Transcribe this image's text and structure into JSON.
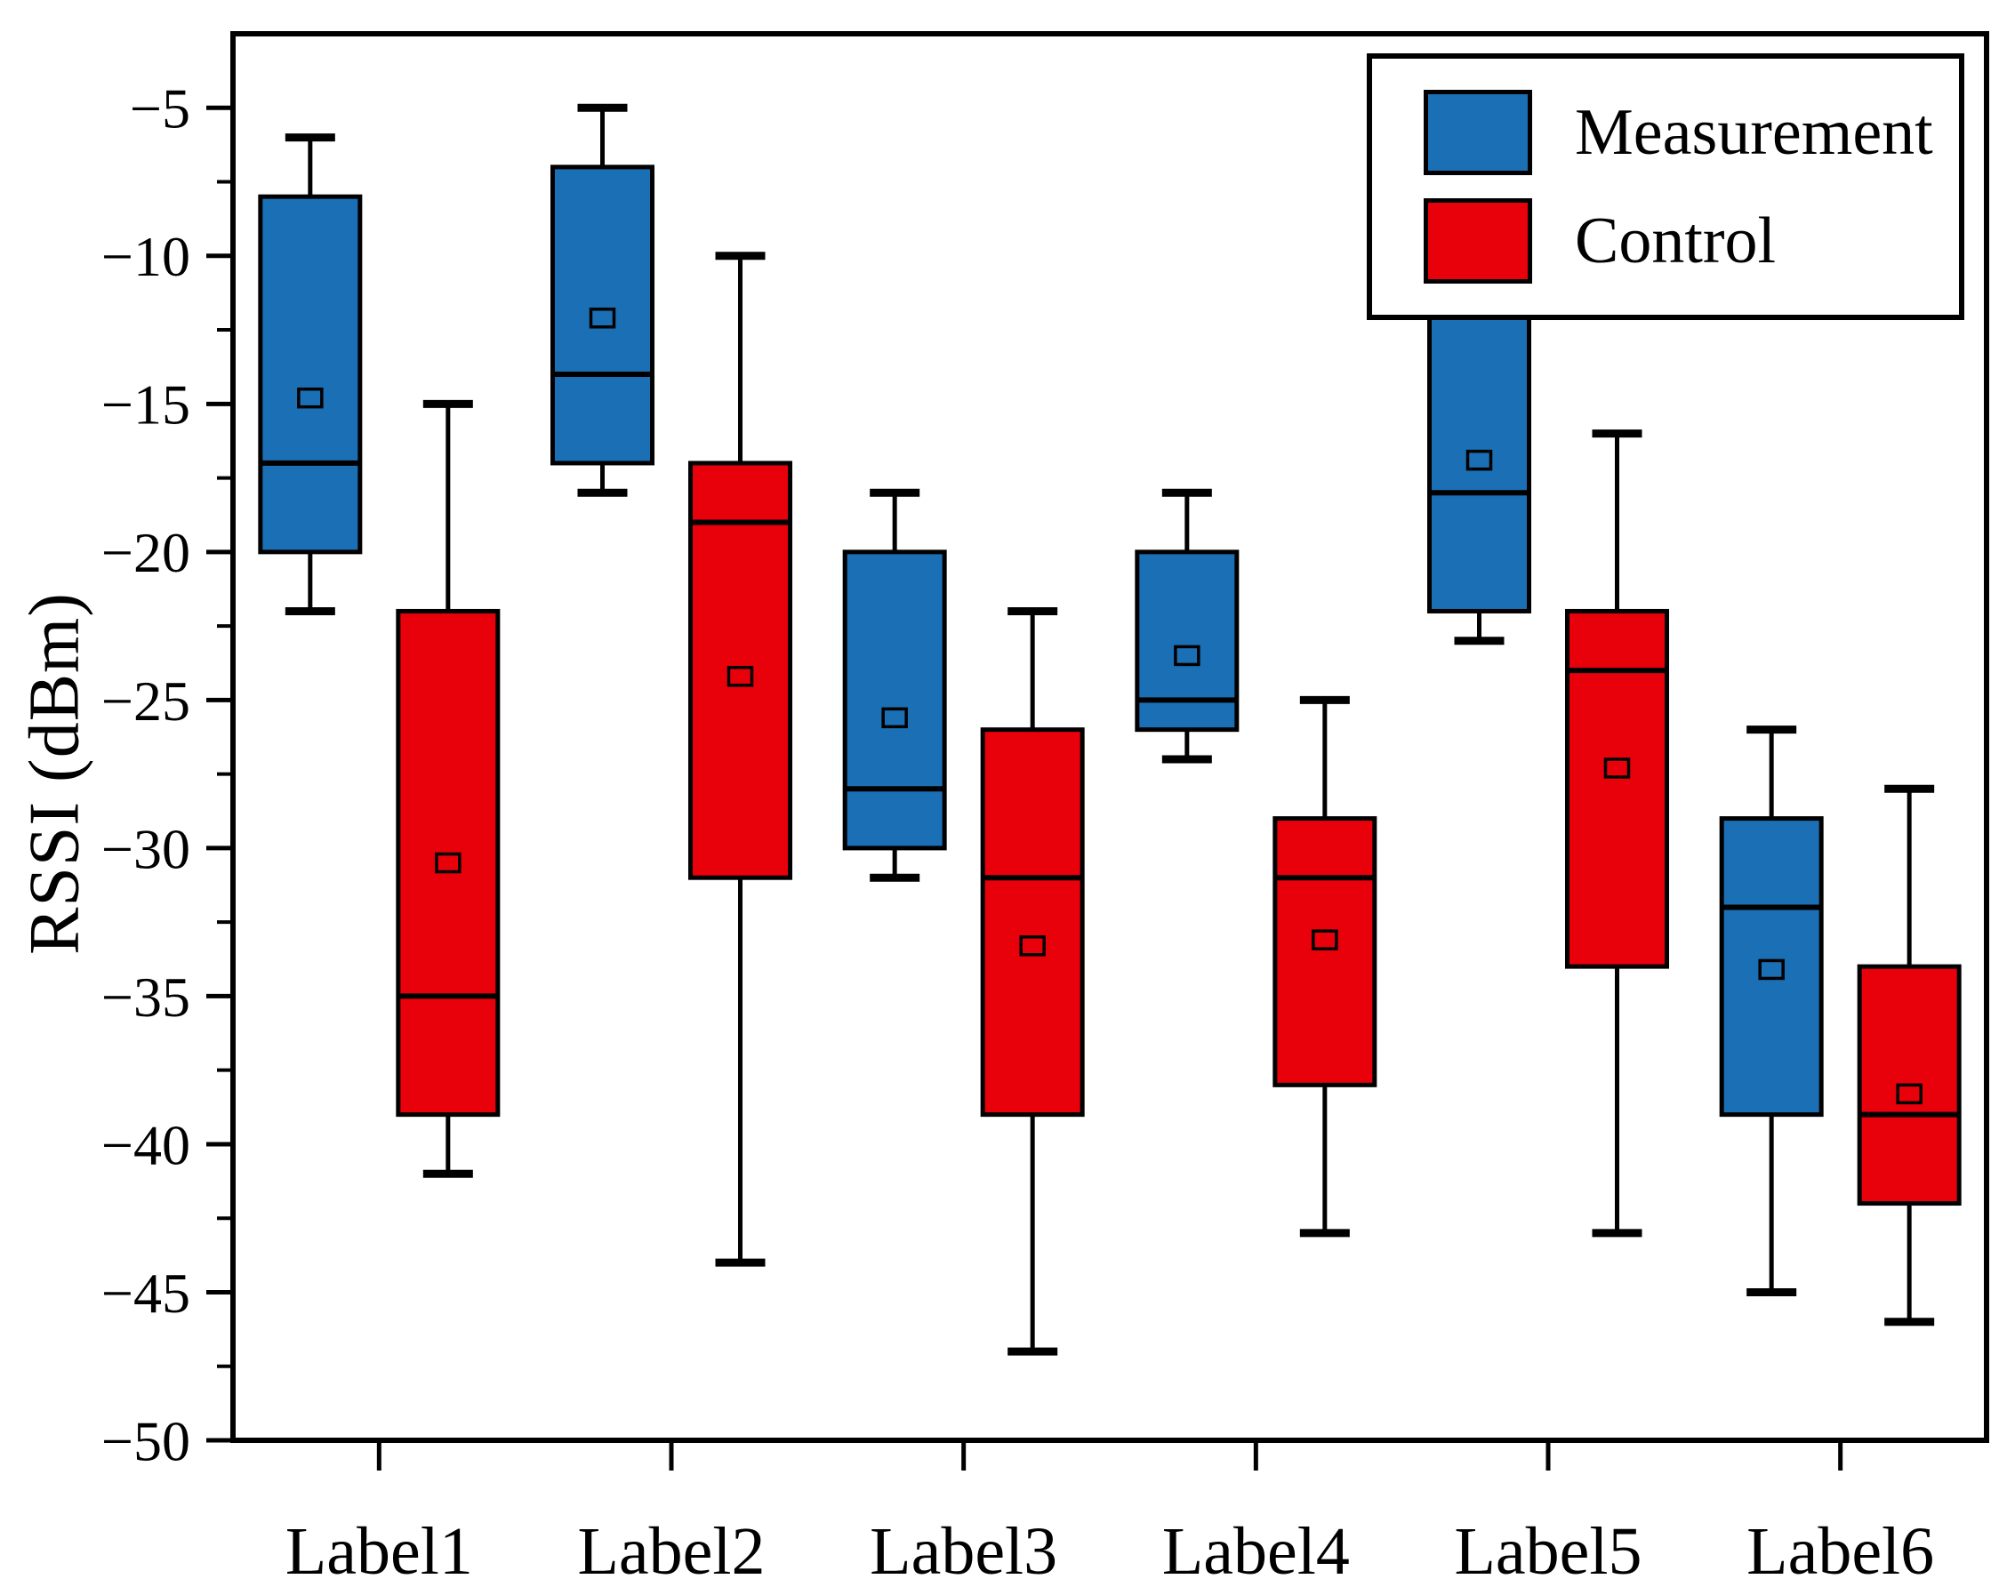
{
  "chart_data": {
    "type": "boxplot",
    "title": "",
    "xlabel": "",
    "ylabel": "RSSI (dBm)",
    "categories": [
      "Label1",
      "Label2",
      "Label3",
      "Label4",
      "Label5",
      "Label6"
    ],
    "ylim": [
      -50,
      -2.5
    ],
    "yticks": [
      -5,
      -10,
      -15,
      -20,
      -25,
      -30,
      -35,
      -40,
      -45,
      -50
    ],
    "minor_tick_step": 2.5,
    "grid": "off",
    "legend_position": "top-right",
    "legend": [
      "Measurement",
      "Control"
    ],
    "colors": {
      "measurement": "#1a6fb5",
      "control": "#e8000b",
      "line": "#000000",
      "background": "#ffffff"
    },
    "series": [
      {
        "name": "Measurement",
        "color": "#1a6fb5",
        "boxes": [
          {
            "category": "Label1",
            "whisker_high": -6,
            "q3": -8,
            "median": -17,
            "mean": -14.8,
            "q1": -20,
            "whisker_low": -22
          },
          {
            "category": "Label2",
            "whisker_high": -5,
            "q3": -7,
            "median": -14,
            "mean": -12.1,
            "q1": -17,
            "whisker_low": -18
          },
          {
            "category": "Label3",
            "whisker_high": -18,
            "q3": -20,
            "median": -28,
            "mean": -25.6,
            "q1": -30,
            "whisker_low": -31
          },
          {
            "category": "Label4",
            "whisker_high": -18,
            "q3": -20,
            "median": -25,
            "mean": -23.5,
            "q1": -26,
            "whisker_low": -27
          },
          {
            "category": "Label5",
            "whisker_high": -10,
            "q3": -11,
            "median": -18,
            "mean": -16.9,
            "q1": -22,
            "whisker_low": -23
          },
          {
            "category": "Label6",
            "whisker_high": -26,
            "q3": -29,
            "median": -32,
            "mean": -34.1,
            "q1": -39,
            "whisker_low": -45
          }
        ]
      },
      {
        "name": "Control",
        "color": "#e8000b",
        "boxes": [
          {
            "category": "Label1",
            "whisker_high": -15,
            "q3": -22,
            "median": -35,
            "mean": -30.5,
            "q1": -39,
            "whisker_low": -41
          },
          {
            "category": "Label2",
            "whisker_high": -10,
            "q3": -17,
            "median": -19,
            "mean": -24.2,
            "q1": -31,
            "whisker_low": -44
          },
          {
            "category": "Label3",
            "whisker_high": -22,
            "q3": -26,
            "median": -31,
            "mean": -33.3,
            "q1": -39,
            "whisker_low": -47
          },
          {
            "category": "Label4",
            "whisker_high": -25,
            "q3": -29,
            "median": -31,
            "mean": -33.1,
            "q1": -38,
            "whisker_low": -43
          },
          {
            "category": "Label5",
            "whisker_high": -16,
            "q3": -22,
            "median": -24,
            "mean": -27.3,
            "q1": -34,
            "whisker_low": -43
          },
          {
            "category": "Label6",
            "whisker_high": -28,
            "q3": -34,
            "median": -39,
            "mean": -38.3,
            "q1": -42,
            "whisker_low": -46
          }
        ]
      }
    ]
  }
}
